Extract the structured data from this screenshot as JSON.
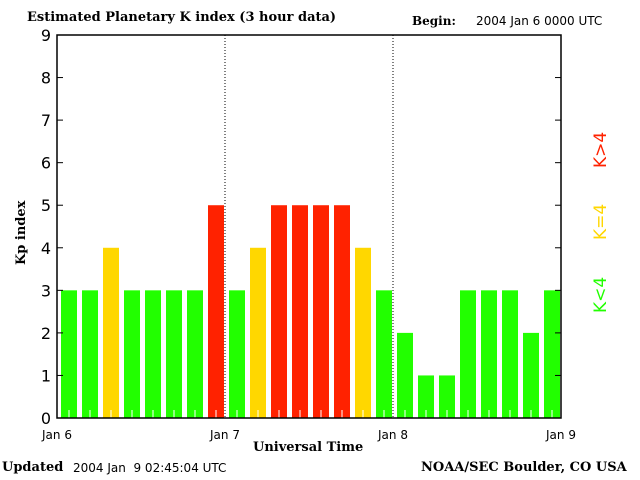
{
  "header": {
    "title": "Estimated Planetary K index (3 hour data)",
    "begin_label": "Begin:",
    "begin_value": "2004 Jan 6 0000 UTC"
  },
  "footer": {
    "updated_label": "Updated",
    "updated_value": "2004 Jan  9 02:45:04 UTC",
    "source": "NOAA/SEC Boulder, CO USA"
  },
  "legend": {
    "low": "K<4",
    "mid": "K=4",
    "high": "K>4"
  },
  "colors": {
    "low": "#22ff00",
    "mid": "#ffd700",
    "high": "#ff2200"
  },
  "chart_data": {
    "type": "bar",
    "title": "Estimated Planetary K index (3 hour data)",
    "xlabel": "Universal Time",
    "ylabel": "Kp index",
    "ylim": [
      0,
      9
    ],
    "yticks": [
      "0",
      "1",
      "2",
      "3",
      "4",
      "5",
      "6",
      "7",
      "8",
      "9"
    ],
    "xticks": [
      "Jan 6",
      "Jan 7",
      "Jan 8",
      "Jan 9"
    ],
    "values": [
      3,
      3,
      4,
      3,
      3,
      3,
      3,
      5,
      3,
      4,
      5,
      5,
      5,
      5,
      4,
      3,
      2,
      1,
      1,
      3,
      3,
      3,
      2,
      3
    ]
  }
}
